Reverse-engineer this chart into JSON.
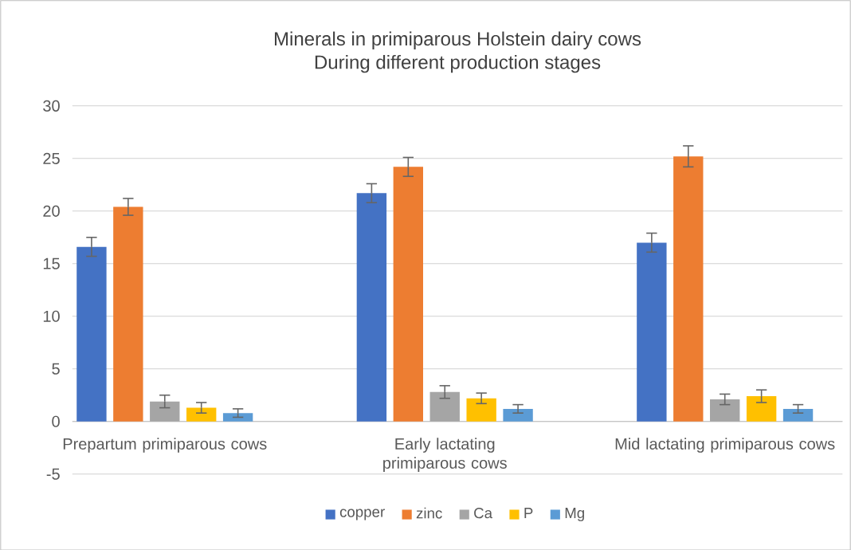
{
  "chart_data": {
    "type": "bar",
    "title": "Minerals in primiparous Holstein dairy cows",
    "subtitle": "During different production stages",
    "categories": [
      "Prepartum primiparous cows",
      "Early lactating primiparous cows",
      "Mid lactating primiparous cows"
    ],
    "series": [
      {
        "name": "copper",
        "color": "#4472c4",
        "values": [
          16.6,
          21.7,
          17.0
        ],
        "errors": [
          0.9,
          0.9,
          0.9
        ]
      },
      {
        "name": "zinc",
        "color": "#ed7d31",
        "values": [
          20.4,
          24.2,
          25.2
        ],
        "errors": [
          0.8,
          0.9,
          1.0
        ]
      },
      {
        "name": "Ca",
        "color": "#a5a5a5",
        "values": [
          1.9,
          2.8,
          2.1
        ],
        "errors": [
          0.6,
          0.6,
          0.5
        ]
      },
      {
        "name": "P",
        "color": "#ffc000",
        "values": [
          1.3,
          2.2,
          2.4
        ],
        "errors": [
          0.5,
          0.5,
          0.6
        ]
      },
      {
        "name": "Mg",
        "color": "#5b9bd5",
        "values": [
          0.8,
          1.2,
          1.2
        ],
        "errors": [
          0.4,
          0.4,
          0.4
        ]
      }
    ],
    "ylim": [
      -5,
      30
    ],
    "yticks": [
      -5,
      0,
      5,
      10,
      15,
      20,
      25,
      30
    ],
    "grid": "y",
    "legend": "bottom"
  }
}
